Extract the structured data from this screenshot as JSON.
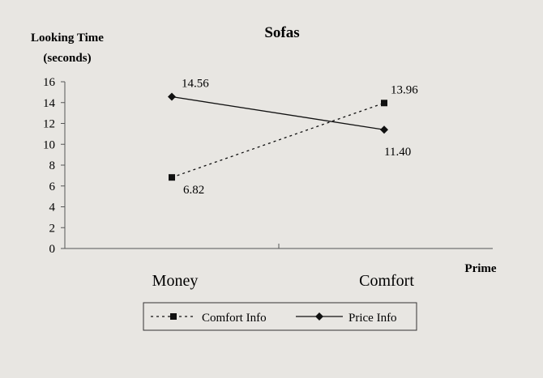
{
  "chart_data": {
    "type": "line",
    "title": "Sofas",
    "ylabel_line1": "Looking Time",
    "ylabel_line2": "(seconds)",
    "xlabel": "Prime",
    "categories": [
      "Money",
      "Comfort"
    ],
    "ylim": [
      0,
      16
    ],
    "yticks": [
      "0",
      "2",
      "4",
      "6",
      "8",
      "10",
      "12",
      "14",
      "16"
    ],
    "grid": false,
    "legend_position": "bottom",
    "series": [
      {
        "name": "Comfort Info",
        "values": [
          6.82,
          13.96
        ],
        "labels": [
          "6.82",
          "13.96"
        ],
        "style": "dashed",
        "marker": "square",
        "color": "#111111"
      },
      {
        "name": "Price Info",
        "values": [
          14.56,
          11.4
        ],
        "labels": [
          "14.56",
          "11.40"
        ],
        "style": "solid",
        "marker": "diamond",
        "color": "#111111"
      }
    ]
  }
}
